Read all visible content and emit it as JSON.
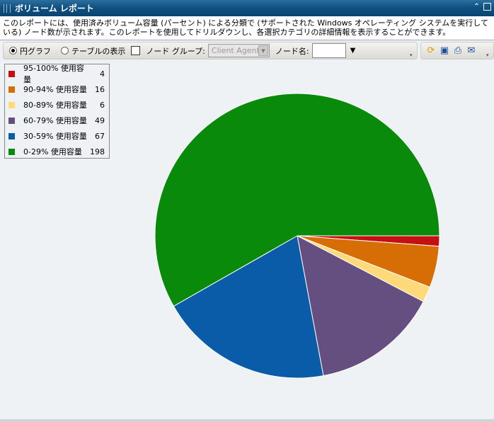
{
  "title": "ボリューム レポート",
  "description": "このレポートには、使用済みボリューム容量 (パーセント) による分類で (サポートされた Windows オペレーティング システムを実行している) ノード数が示されます。このレポートを使用してドリルダウンし、各選択カテゴリの詳細情報を表示することができます。",
  "toolbar": {
    "pie_label": "円グラフ",
    "table_label": "テーブルの表示",
    "node_group_label": "ノード グループ:",
    "node_group_value": "Client Agent",
    "node_name_label": "ノード名:",
    "node_name_value": "",
    "view": "pie",
    "node_group_checked": false
  },
  "actions": [
    "refresh-icon",
    "save-icon",
    "print-icon",
    "email-icon"
  ],
  "chart_data": {
    "type": "pie",
    "start": "3 o'clock, clockwise",
    "slices": [
      {
        "label": "95-100% 使用容量",
        "value": 4,
        "color": "#c41010"
      },
      {
        "label": "90-94% 使用容量",
        "value": 16,
        "color": "#d66d05"
      },
      {
        "label": "80-89% 使用容量",
        "value": 6,
        "color": "#ffd97a"
      },
      {
        "label": "60-79% 使用容量",
        "value": 49,
        "color": "#654e80"
      },
      {
        "label": "30-59% 使用容量",
        "value": 67,
        "color": "#0a5ca8"
      },
      {
        "label": "0-29% 使用容量",
        "value": 198,
        "color": "#0a8a0a"
      }
    ]
  }
}
